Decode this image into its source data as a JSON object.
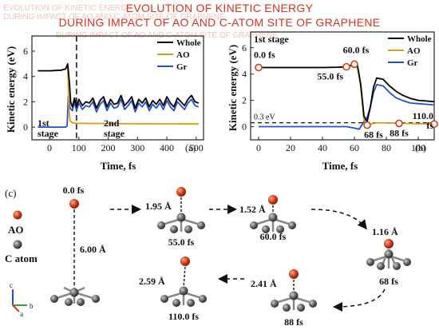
{
  "header": {
    "line1": "EVOLUTION OF KINETIC ENERGY",
    "line2": "DURING IMPACT OF AO AND C-ATOM SITE OF GRAPHENE"
  },
  "colors": {
    "whole": "#000000",
    "ao": "#d4a017",
    "gr": "#2451c9",
    "marker": "#d63a1a",
    "title": "#d9311f"
  },
  "chart_data": [
    {
      "type": "line",
      "panel_label": "(a)",
      "xlabel": "Time, fs",
      "ylabel": "Kinetic energy (eV)",
      "xlim": [
        -60,
        525
      ],
      "ylim": [
        -1.0,
        7.2
      ],
      "xticks": [
        0,
        100,
        200,
        300,
        400,
        500
      ],
      "yticks": [
        0,
        2,
        4,
        6
      ],
      "dashed_vline_x": 92,
      "annotations": {
        "stage1": "1st\nstage",
        "stage2": "2nd\nstage"
      },
      "series": [
        {
          "name": "Whole",
          "x": [
            -40,
            0,
            40,
            55,
            62,
            68,
            72,
            78,
            85,
            92,
            100,
            112,
            124,
            136,
            148,
            160,
            172,
            184,
            196,
            208,
            220,
            232,
            244,
            256,
            268,
            280,
            292,
            304,
            316,
            328,
            340,
            352,
            364,
            376,
            388,
            400,
            412,
            424,
            436,
            448,
            460,
            472,
            484,
            496,
            508
          ],
          "y": [
            4.45,
            4.45,
            4.5,
            4.6,
            5.0,
            3.5,
            2.0,
            1.6,
            2.3,
            1.6,
            2.2,
            1.7,
            2.0,
            1.9,
            2.3,
            1.5,
            2.1,
            2.4,
            1.6,
            2.2,
            1.8,
            1.9,
            2.5,
            1.7,
            2.0,
            2.4,
            1.5,
            2.2,
            1.9,
            2.3,
            1.6,
            2.1,
            1.8,
            2.2,
            1.7,
            2.4,
            1.9,
            1.6,
            2.3,
            2.0,
            1.7,
            2.2,
            2.5,
            2.0,
            1.9
          ]
        },
        {
          "name": "AO",
          "x": [
            -40,
            0,
            40,
            55,
            62,
            66,
            70,
            78,
            90,
            120,
            200,
            300,
            400,
            508
          ],
          "y": [
            4.45,
            4.45,
            4.5,
            4.6,
            4.9,
            1.5,
            0.5,
            0.35,
            0.3,
            0.3,
            0.28,
            0.27,
            0.26,
            0.25
          ]
        },
        {
          "name": "Gr",
          "x": [
            -40,
            0,
            40,
            55,
            60,
            64,
            70,
            78,
            85,
            92,
            100,
            112,
            124,
            136,
            148,
            160,
            172,
            184,
            196,
            208,
            220,
            232,
            244,
            256,
            268,
            280,
            292,
            304,
            316,
            328,
            340,
            352,
            364,
            376,
            388,
            400,
            412,
            424,
            436,
            448,
            460,
            472,
            484,
            496,
            508
          ],
          "y": [
            0,
            0,
            0,
            0,
            0.1,
            2.5,
            1.5,
            1.3,
            2.0,
            1.3,
            1.9,
            1.4,
            1.7,
            1.6,
            2.0,
            1.2,
            1.8,
            2.1,
            1.3,
            1.9,
            1.5,
            1.6,
            2.2,
            1.4,
            1.7,
            2.1,
            1.2,
            1.9,
            1.6,
            2.0,
            1.3,
            1.8,
            1.5,
            1.9,
            1.4,
            2.1,
            1.6,
            1.3,
            2.0,
            1.7,
            1.4,
            1.9,
            2.2,
            1.7,
            1.6
          ]
        }
      ]
    },
    {
      "type": "line",
      "panel_label": "(b)",
      "stage_label": "1st stage",
      "xlabel": "Time, fs",
      "ylabel": "Kinetic energy (eV)",
      "xlim": [
        -5,
        110
      ],
      "ylim": [
        -1.0,
        7.2
      ],
      "xticks": [
        0,
        20,
        40,
        60,
        80,
        100
      ],
      "yticks": [
        0,
        2,
        4,
        6
      ],
      "dashed_hline": {
        "y": 0.3,
        "label": "0.3 eV"
      },
      "series": [
        {
          "name": "Whole",
          "x": [
            0,
            20,
            40,
            50,
            55,
            58,
            60,
            62,
            64,
            66,
            68,
            70,
            72,
            74,
            78,
            82,
            86,
            90,
            95,
            100,
            105,
            110
          ],
          "y": [
            4.5,
            4.5,
            4.5,
            4.52,
            4.55,
            4.65,
            4.75,
            4.6,
            3.2,
            0.8,
            0.4,
            1.5,
            3.0,
            3.7,
            3.6,
            3.1,
            2.7,
            2.4,
            2.15,
            2.0,
            1.95,
            1.9
          ]
        },
        {
          "name": "AO",
          "x": [
            0,
            20,
            40,
            50,
            55,
            58,
            60,
            62,
            64,
            66,
            68,
            70,
            74,
            80,
            88,
            95,
            100,
            110
          ],
          "y": [
            4.5,
            4.5,
            4.5,
            4.52,
            4.55,
            4.65,
            4.7,
            4.5,
            3.0,
            0.5,
            0.12,
            0.2,
            0.3,
            0.28,
            0.25,
            0.24,
            0.23,
            0.2
          ]
        },
        {
          "name": "Gr",
          "x": [
            0,
            20,
            40,
            55,
            60,
            63,
            66,
            68,
            70,
            72,
            74,
            78,
            82,
            86,
            90,
            95,
            100,
            105,
            110
          ],
          "y": [
            0,
            0,
            0,
            0,
            -0.1,
            -0.2,
            0.4,
            0.7,
            1.5,
            2.6,
            3.2,
            3.1,
            2.6,
            2.2,
            2.0,
            1.8,
            1.75,
            1.7,
            1.65
          ]
        }
      ],
      "markers": [
        {
          "x": 0,
          "y": 4.5,
          "label": "0.0 fs"
        },
        {
          "x": 55,
          "y": 4.55,
          "label": "55.0 fs"
        },
        {
          "x": 60,
          "y": 4.75,
          "label": "60.0 fs"
        },
        {
          "x": 68,
          "y": 0.12,
          "label": "68 fs"
        },
        {
          "x": 88,
          "y": 0.25,
          "label": "88 fs"
        },
        {
          "x": 110,
          "y": 0.2,
          "label": "110.0\nfs"
        }
      ]
    }
  ],
  "panel_c": {
    "label": "(c)",
    "legend_ao": "AO",
    "legend_c": "C atom",
    "axes": {
      "c": "c",
      "a": "a",
      "b": "b"
    },
    "frames": [
      {
        "time": "0.0 fs",
        "dist": "6.00 Å"
      },
      {
        "time": "55.0 fs",
        "dist": "1.95 Å"
      },
      {
        "time": "60.0 fs",
        "dist": "1.52 Å"
      },
      {
        "time": "68 fs",
        "dist": "1.16 Å"
      },
      {
        "time": "88 fs",
        "dist": "2.41 Å"
      },
      {
        "time": "110.0 fs",
        "dist": "2.59 Å"
      }
    ]
  }
}
